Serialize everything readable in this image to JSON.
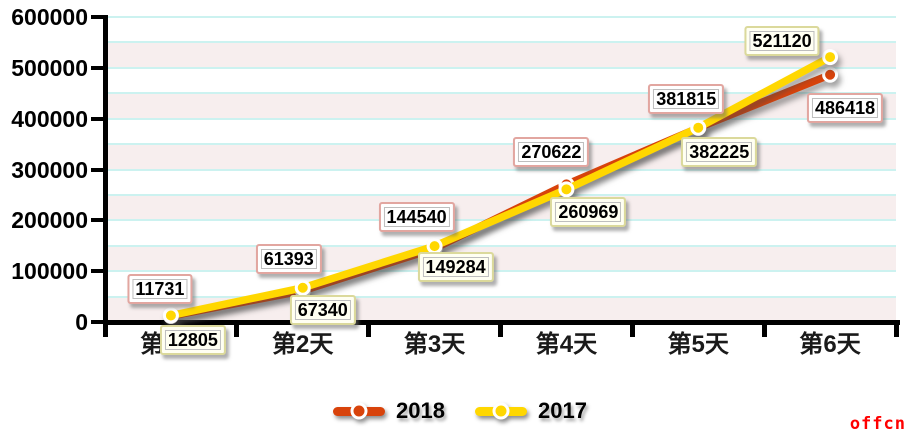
{
  "chart_data": {
    "type": "line",
    "title": "",
    "categories": [
      "第1天",
      "第2天",
      "第3天",
      "第4天",
      "第5天",
      "第6天"
    ],
    "series": [
      {
        "name": "2018",
        "color": "#D8430B",
        "values": [
          11731,
          61393,
          144540,
          270622,
          381815,
          486418
        ],
        "label_box": {
          "border": "#E2A6A0",
          "bg": "#FFFFFF"
        },
        "label_offsets": [
          [
            -11,
            -27
          ],
          [
            -14,
            -32
          ],
          [
            -18,
            -32
          ],
          [
            -15,
            -32
          ],
          [
            -12,
            -29
          ],
          [
            15,
            33
          ]
        ]
      },
      {
        "name": "2017",
        "color": "#FFD700",
        "values": [
          12805,
          67340,
          149284,
          260969,
          382225,
          521120
        ],
        "label_box": {
          "border": "#DBD99B",
          "bg": "#FFFFF2"
        },
        "label_offsets": [
          [
            22,
            25
          ],
          [
            20,
            22
          ],
          [
            21,
            21
          ],
          [
            22,
            23
          ],
          [
            21,
            24
          ],
          [
            -48,
            -16
          ]
        ]
      }
    ],
    "ylim": [
      0,
      600000
    ],
    "ytick_step": 100000,
    "yticks": [
      "0",
      "100000",
      "200000",
      "300000",
      "400000",
      "500000",
      "600000"
    ],
    "band_step": 50000,
    "band_fill": "#F7EEEE",
    "gridline_color": "#CCF2F0",
    "axis_color": "#000000",
    "point_inner_border": "#FFFFFF",
    "legend_position": "bottom-center",
    "legend_labels": [
      "2018",
      "2017"
    ]
  },
  "watermark": "offcn"
}
